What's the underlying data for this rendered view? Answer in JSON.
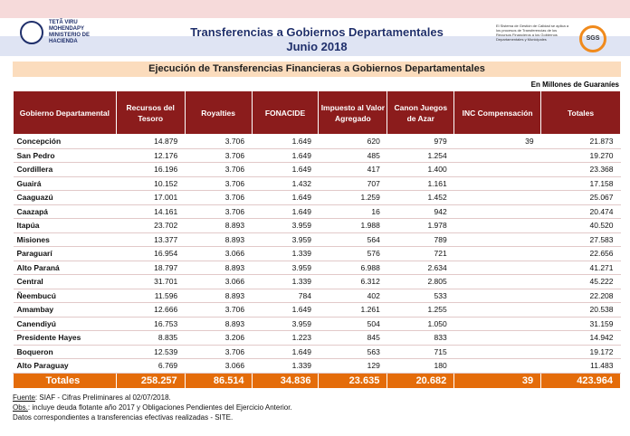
{
  "header": {
    "logo": [
      "TETÃ VIRU",
      "MOHENDAPY",
      "MINISTERIO DE",
      "HACIENDA"
    ],
    "title": "Transferencias a Gobiernos Departamentales",
    "period": "Junio 2018",
    "certification": "El Sistema de Gestión de Calidad se aplica a los procesos de Transferencias de los Recursos Financieros a los Gobiernos Departamentales y Municipales",
    "cert_logo": "SGS"
  },
  "subtitle": "Ejecución de Transferencias Financieras a Gobiernos Departamentales",
  "unit": "En Millones de Guaraníes",
  "table": {
    "columns": [
      "Gobierno Departamental",
      "Recursos del Tesoro",
      "Royalties",
      "FONACIDE",
      "Impuesto al Valor Agregado",
      "Canon Juegos de Azar",
      "INC Compensación",
      "Totales"
    ],
    "rows": [
      [
        "Concepción",
        "14.879",
        "3.706",
        "1.649",
        "620",
        "979",
        "39",
        "21.873"
      ],
      [
        "San Pedro",
        "12.176",
        "3.706",
        "1.649",
        "485",
        "1.254",
        null,
        "19.270"
      ],
      [
        "Cordillera",
        "16.196",
        "3.706",
        "1.649",
        "417",
        "1.400",
        null,
        "23.368"
      ],
      [
        "Guairá",
        "10.152",
        "3.706",
        "1.432",
        "707",
        "1.161",
        null,
        "17.158"
      ],
      [
        "Caaguazú",
        "17.001",
        "3.706",
        "1.649",
        "1.259",
        "1.452",
        null,
        "25.067"
      ],
      [
        "Caazapá",
        "14.161",
        "3.706",
        "1.649",
        "16",
        "942",
        null,
        "20.474"
      ],
      [
        "Itapúa",
        "23.702",
        "8.893",
        "3.959",
        "1.988",
        "1.978",
        null,
        "40.520"
      ],
      [
        "Misiones",
        "13.377",
        "8.893",
        "3.959",
        "564",
        "789",
        null,
        "27.583"
      ],
      [
        "Paraguarí",
        "16.954",
        "3.066",
        "1.339",
        "576",
        "721",
        null,
        "22.656"
      ],
      [
        "Alto Paraná",
        "18.797",
        "8.893",
        "3.959",
        "6.988",
        "2.634",
        null,
        "41.271"
      ],
      [
        "Central",
        "31.701",
        "3.066",
        "1.339",
        "6.312",
        "2.805",
        null,
        "45.222"
      ],
      [
        "Ñeembucú",
        "11.596",
        "8.893",
        "784",
        "402",
        "533",
        null,
        "22.208"
      ],
      [
        "Amambay",
        "12.666",
        "3.706",
        "1.649",
        "1.261",
        "1.255",
        null,
        "20.538"
      ],
      [
        "Canendiyú",
        "16.753",
        "8.893",
        "3.959",
        "504",
        "1.050",
        null,
        "31.159"
      ],
      [
        "Presidente Hayes",
        "8.835",
        "3.206",
        "1.223",
        "845",
        "833",
        null,
        "14.942"
      ],
      [
        "Boqueron",
        "12.539",
        "3.706",
        "1.649",
        "563",
        "715",
        null,
        "19.172"
      ],
      [
        "Alto Paraguay",
        "6.769",
        "3.066",
        "1.339",
        "129",
        "180",
        null,
        "11.483"
      ]
    ],
    "totals": [
      "Totales",
      "258.257",
      "86.514",
      "34.836",
      "23.635",
      "20.682",
      "39",
      "423.964"
    ]
  },
  "notes": [
    {
      "label": "Fuente",
      "text": ": SIAF - Cifras Preliminares al 02/07/2018."
    },
    {
      "label": "Obs.",
      "text": ": incluye deuda flotante año 2017 y Obligaciones Pendientes del Ejercicio Anterior."
    },
    {
      "label": null,
      "text": "Datos correspondientes a transferencias efectivas realizadas - SITE."
    }
  ]
}
